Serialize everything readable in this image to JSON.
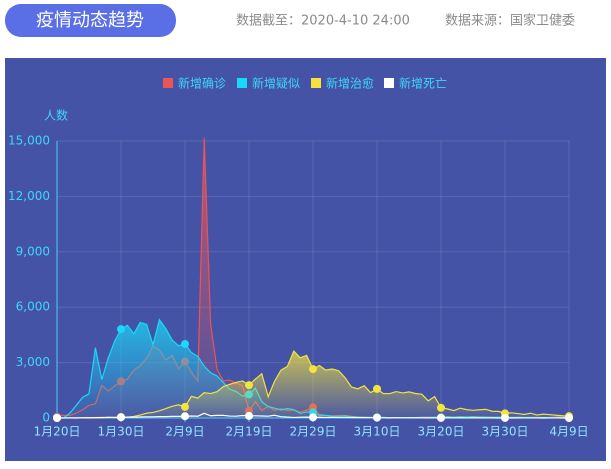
{
  "header": {
    "title": "疫情动态趋势",
    "date": "数据截至：2020-4-10 24:00",
    "source": "数据来源：国家卫健委"
  },
  "chart_data": {
    "type": "line",
    "y_label": "人数",
    "categories": [
      "1月20日",
      null,
      null,
      null,
      null,
      null,
      null,
      null,
      null,
      null,
      "1月30日",
      null,
      null,
      null,
      null,
      null,
      null,
      null,
      null,
      null,
      "2月9日",
      null,
      null,
      null,
      null,
      null,
      null,
      null,
      null,
      null,
      "2月19日",
      null,
      null,
      null,
      null,
      null,
      null,
      null,
      null,
      null,
      "2月29日",
      null,
      null,
      null,
      null,
      null,
      null,
      null,
      null,
      null,
      "3月10日",
      null,
      null,
      null,
      null,
      null,
      null,
      null,
      null,
      null,
      "3月20日",
      null,
      null,
      null,
      null,
      null,
      null,
      null,
      null,
      null,
      "3月30日",
      null,
      null,
      null,
      null,
      null,
      null,
      null,
      null,
      null,
      "4月9日"
    ],
    "ylim": [
      0,
      15000
    ],
    "yticks": [
      0,
      {
        "value": 3000,
        "label": "3,000"
      },
      {
        "value": 6000,
        "label": "6,000"
      },
      {
        "value": 9000,
        "label": "9,000"
      },
      {
        "value": 12000,
        "label": "12,000"
      },
      {
        "value": 15000,
        "label": "15,000"
      }
    ],
    "grid": true,
    "series": [
      {
        "name": "新增确诊",
        "color": "#ea5558",
        "values": [
          77,
          149,
          131,
          259,
          444,
          688,
          769,
          1771,
          1459,
          1737,
          1982,
          2102,
          2590,
          2829,
          3235,
          3887,
          3694,
          3143,
          3399,
          2656,
          3062,
          2478,
          2015,
          15152,
          5090,
          2641,
          2009,
          2048,
          1886,
          1749,
          394,
          889,
          397,
          648,
          409,
          508,
          406,
          433,
          327,
          427,
          573,
          202,
          125,
          119,
          139,
          143,
          99,
          44,
          40,
          19,
          24,
          15,
          8,
          11,
          20,
          16,
          21,
          39,
          41,
          46,
          39,
          78,
          46,
          78,
          47,
          67,
          55,
          54,
          45,
          31,
          48,
          36,
          35,
          31,
          30,
          39,
          30,
          32,
          62,
          63,
          42
        ]
      },
      {
        "name": "新增疑似",
        "color": "#1ad8f7",
        "values": [
          27,
          0,
          257,
          680,
          1118,
          1309,
          3806,
          2077,
          3248,
          4148,
          4812,
          5019,
          4562,
          5173,
          5072,
          3971,
          5328,
          4833,
          4214,
          3916,
          4008,
          3536,
          3342,
          2807,
          2450,
          2277,
          1918,
          1563,
          1432,
          1185,
          1277,
          1614,
          882,
          620,
          530,
          439,
          508,
          452,
          248,
          329,
          312,
          143,
          143,
          102,
          99,
          115,
          63,
          41,
          45,
          36,
          31,
          33,
          17,
          15,
          21,
          18,
          25,
          30,
          28,
          40,
          36,
          60,
          45,
          62,
          55,
          70,
          48,
          52,
          38,
          40,
          35,
          30,
          34,
          28,
          32,
          25,
          29,
          22,
          30,
          26,
          20
        ]
      },
      {
        "name": "新增治愈",
        "color": "#f3e33c",
        "values": [
          0,
          0,
          2,
          6,
          3,
          11,
          2,
          9,
          43,
          21,
          47,
          43,
          85,
          157,
          262,
          300,
          387,
          510,
          632,
          716,
          600,
          1171,
          1081,
          1373,
          1323,
          1425,
          1701,
          1824,
          1933,
          2005,
          1779,
          2109,
          2393,
          1153,
          1998,
          2587,
          2796,
          3622,
          3262,
          3393,
          2650,
          2837,
          2593,
          2651,
          2557,
          2189,
          1681,
          1580,
          1745,
          1374,
          1578,
          1318,
          1323,
          1430,
          1358,
          1413,
          1328,
          1290,
          930,
          1157,
          553,
          494,
          400,
          531,
          453,
          416,
          447,
          469,
          365,
          359,
          250,
          280,
          240,
          190,
          260,
          160,
          210,
          180,
          150,
          120,
          100
        ]
      },
      {
        "name": "新增死亡",
        "color": "#ffffff",
        "values": [
          0,
          3,
          8,
          0,
          16,
          15,
          24,
          26,
          26,
          38,
          43,
          46,
          45,
          57,
          64,
          65,
          73,
          73,
          86,
          89,
          97,
          108,
          97,
          254,
          121,
          143,
          142,
          105,
          98,
          136,
          114,
          118,
          109,
          97,
          150,
          71,
          52,
          29,
          44,
          47,
          35,
          42,
          31,
          38,
          31,
          30,
          28,
          27,
          22,
          17,
          22,
          11,
          7,
          13,
          10,
          14,
          13,
          11,
          8,
          3,
          7,
          6,
          9,
          7,
          4,
          6,
          5,
          3,
          5,
          1,
          4,
          1,
          6,
          4,
          3,
          4,
          1,
          2,
          2,
          0,
          0
        ]
      }
    ]
  }
}
